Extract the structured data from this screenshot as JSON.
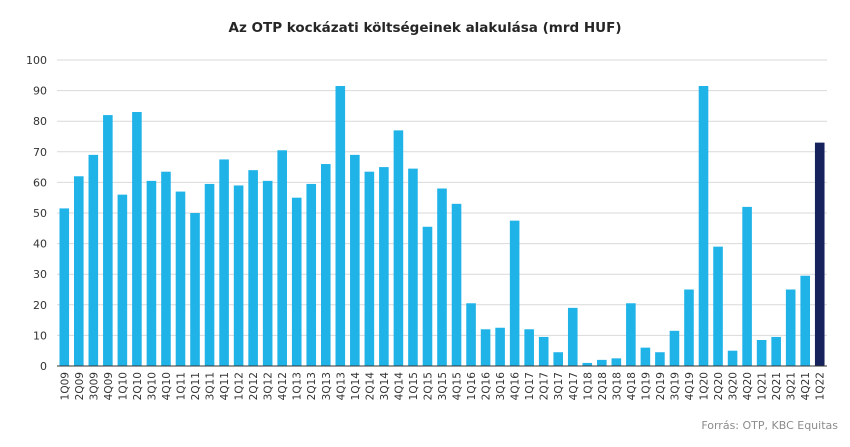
{
  "chart_data": {
    "type": "bar",
    "title": "Az OTP kockázati költségeinek alakulása (mrd HUF)",
    "source": "Forrás: OTP, KBC Equitas",
    "xlabel": "",
    "ylabel": "",
    "ylim": [
      0,
      100
    ],
    "yticks": [
      0,
      10,
      20,
      30,
      40,
      50,
      60,
      70,
      80,
      90,
      100
    ],
    "grid": true,
    "categories": [
      "1Q09",
      "2Q09",
      "3Q09",
      "4Q09",
      "1Q10",
      "2Q10",
      "3Q10",
      "4Q10",
      "1Q11",
      "2Q11",
      "3Q11",
      "4Q11",
      "1Q12",
      "2Q12",
      "3Q12",
      "4Q12",
      "1Q13",
      "2Q13",
      "3Q13",
      "4Q13",
      "1Q14",
      "2Q14",
      "3Q14",
      "4Q14",
      "1Q15",
      "2Q15",
      "3Q15",
      "4Q15",
      "1Q16",
      "2Q16",
      "3Q16",
      "4Q16",
      "1Q17",
      "2Q17",
      "3Q17",
      "4Q17",
      "1Q18",
      "2Q18",
      "3Q18",
      "4Q18",
      "1Q19",
      "2Q19",
      "3Q19",
      "4Q19",
      "1Q20",
      "2Q20",
      "3Q20",
      "4Q20",
      "1Q21",
      "2Q21",
      "3Q21",
      "4Q21",
      "1Q22"
    ],
    "values": [
      51.5,
      62,
      69,
      82,
      56,
      83,
      60.5,
      63.5,
      57,
      50,
      59.5,
      67.5,
      59,
      64,
      60.5,
      70.5,
      55,
      59.5,
      66,
      91.5,
      69,
      63.5,
      65,
      77,
      64.5,
      45.5,
      58,
      53,
      20.5,
      12,
      12.5,
      47.5,
      12,
      9.5,
      4.5,
      19,
      1,
      2,
      2.5,
      20.5,
      6,
      4.5,
      11.5,
      25,
      91.5,
      39,
      5,
      52,
      8.5,
      9.5,
      25,
      29.5,
      73
    ],
    "colors": {
      "bar": "#1fb3e8",
      "highlight": "#15225c",
      "grid": "#d9d9d9",
      "axis": "#333333"
    },
    "highlight_index": 52
  }
}
